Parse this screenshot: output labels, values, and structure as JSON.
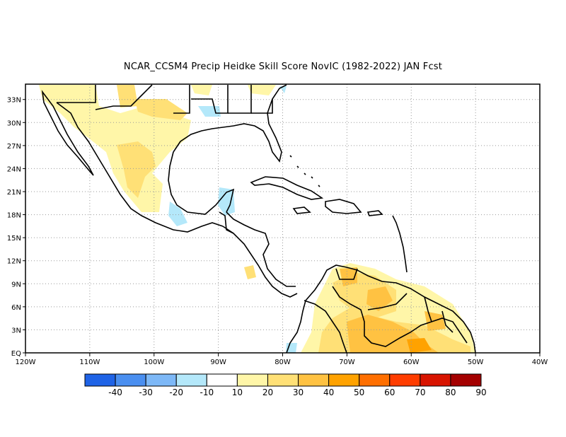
{
  "title": "NCAR_CCSM4 Precip Heidke Skill Score NovIC (1982-2022) JAN Fcst",
  "map": {
    "lon_labels": [
      "120W",
      "110W",
      "100W",
      "90W",
      "80W",
      "70W",
      "60W",
      "50W",
      "40W"
    ],
    "lon_values": [
      -120,
      -110,
      -100,
      -90,
      -80,
      -70,
      -60,
      -50,
      -40
    ],
    "lat_labels": [
      "EQ",
      "3N",
      "6N",
      "9N",
      "12N",
      "15N",
      "18N",
      "21N",
      "24N",
      "27N",
      "30N",
      "33N"
    ],
    "lat_values": [
      0,
      3,
      6,
      9,
      12,
      15,
      18,
      21,
      24,
      27,
      30,
      33
    ],
    "lon_range": [
      -120,
      -40
    ],
    "lat_range": [
      0,
      35
    ],
    "grid": "dotted"
  },
  "colorbar": {
    "levels": [
      "-40",
      "-30",
      "-20",
      "-10",
      "10",
      "20",
      "30",
      "40",
      "50",
      "60",
      "70",
      "80",
      "90"
    ],
    "colors": [
      "#1f63e6",
      "#4a8ff0",
      "#7db8f7",
      "#b4e8fa",
      "#ffffff",
      "#fff6a8",
      "#ffe076",
      "#ffc242",
      "#ffa200",
      "#ff6f00",
      "#ff3d00",
      "#d81400",
      "#a40000"
    ]
  }
}
